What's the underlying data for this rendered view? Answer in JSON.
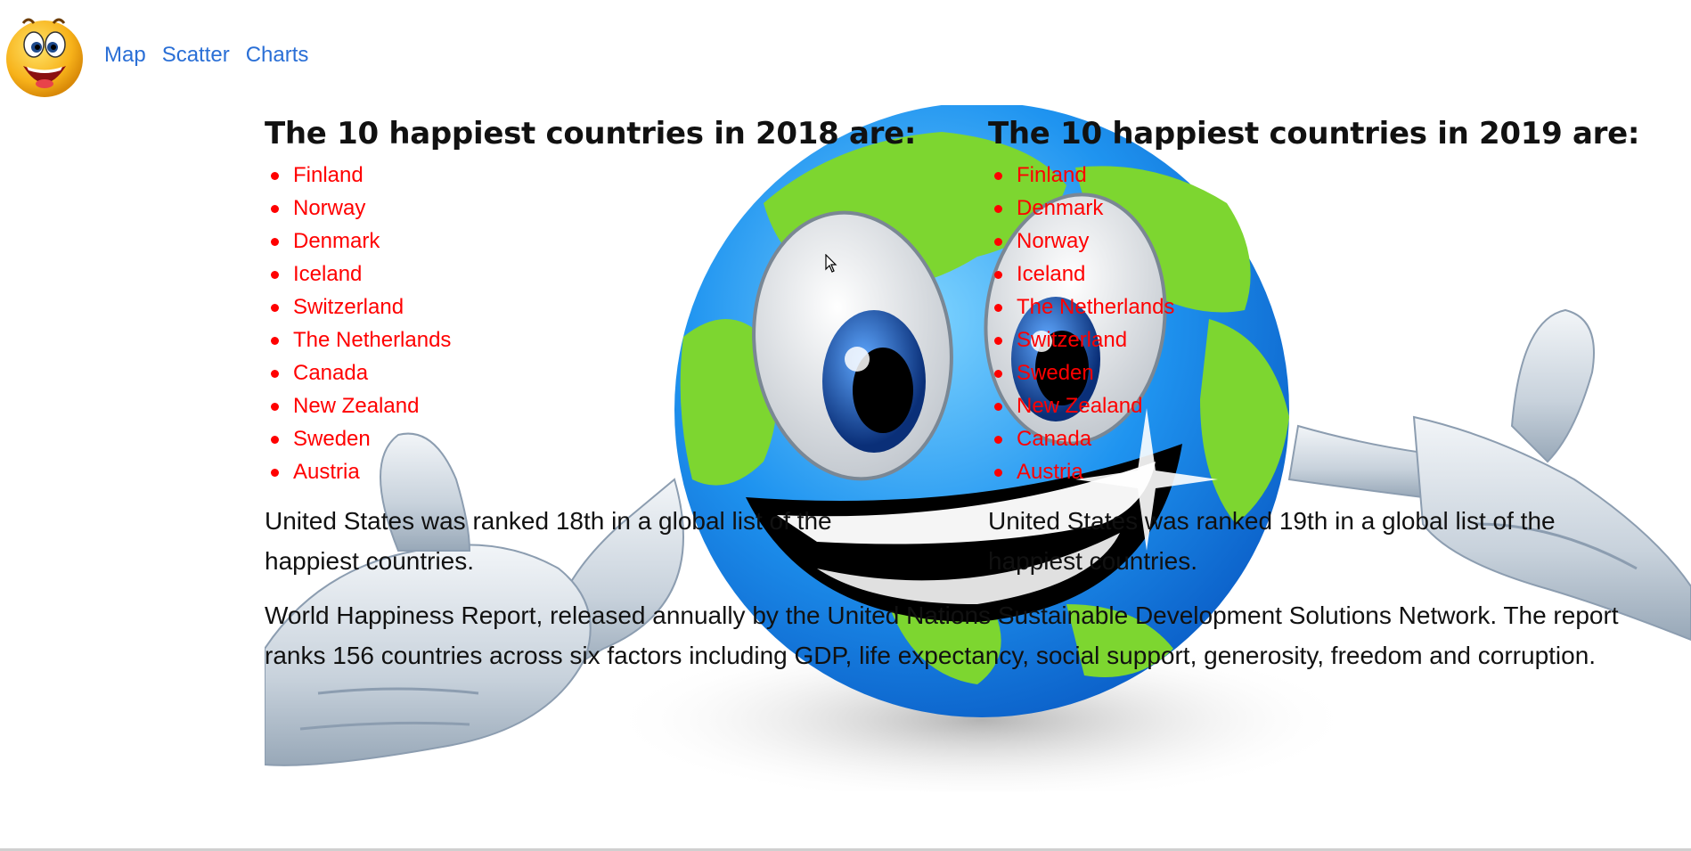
{
  "nav": {
    "items": [
      {
        "label": "Map"
      },
      {
        "label": "Scatter"
      },
      {
        "label": "Charts"
      }
    ]
  },
  "section_2018": {
    "heading": "The 10 happiest countries in 2018 are:",
    "countries": [
      "Finland",
      "Norway",
      "Denmark",
      "Iceland",
      "Switzerland",
      "The Netherlands",
      "Canada",
      "New Zealand",
      "Sweden",
      "Austria"
    ],
    "us_rank_text": "United States was ranked 18th in a global list of the happiest countries."
  },
  "section_2019": {
    "heading": "The 10 happiest countries in 2019 are:",
    "countries": [
      "Finland",
      "Denmark",
      "Norway",
      "Iceland",
      "The Netherlands",
      "Switzerland",
      "Sweden",
      "New Zealand",
      "Canada",
      "Austria"
    ],
    "us_rank_text": "United States was ranked 19th in a global list of the happiest countries."
  },
  "report_text": "World Happiness Report, released annually by the United Nations Sustainable Development Solutions Network. The report ranks 156 countries across six factors including GDP, life expectancy, social support, generosity, freedom and corruption.",
  "colors": {
    "link": "#2a6fd6",
    "list_item": "#ff0000",
    "globe_ocean": "#1a8ff0",
    "globe_land": "#7dd630"
  },
  "icons": {
    "logo": "smiley-emoji-icon",
    "background": "smiling-globe-illustration"
  }
}
